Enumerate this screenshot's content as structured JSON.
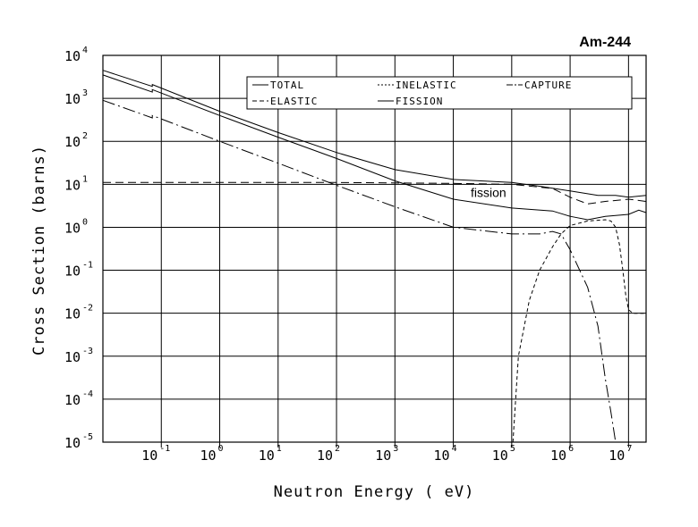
{
  "chart_data": {
    "type": "line",
    "title": "Am-244",
    "xlabel": "Neutron Energy ( eV)",
    "ylabel": "Cross Section (barns)",
    "x_scale": "log",
    "y_scale": "log",
    "xlim": [
      0.01,
      20000000
    ],
    "ylim": [
      1e-05,
      10000
    ],
    "grid": true,
    "legend_position": "top-right",
    "x_ticks": [
      {
        "base": "10",
        "exp": "-1",
        "value": 0.1
      },
      {
        "base": "10",
        "exp": "0",
        "value": 1
      },
      {
        "base": "10",
        "exp": "1",
        "value": 10
      },
      {
        "base": "10",
        "exp": "2",
        "value": 100
      },
      {
        "base": "10",
        "exp": "3",
        "value": 1000
      },
      {
        "base": "10",
        "exp": "4",
        "value": 10000
      },
      {
        "base": "10",
        "exp": "5",
        "value": 100000
      },
      {
        "base": "10",
        "exp": "6",
        "value": 1000000
      },
      {
        "base": "10",
        "exp": "7",
        "value": 10000000
      }
    ],
    "y_ticks": [
      {
        "base": "10",
        "exp": "-5",
        "value": 1e-05
      },
      {
        "base": "10",
        "exp": "-4",
        "value": 0.0001
      },
      {
        "base": "10",
        "exp": "-3",
        "value": 0.001
      },
      {
        "base": "10",
        "exp": "-2",
        "value": 0.01
      },
      {
        "base": "10",
        "exp": "-1",
        "value": 0.1
      },
      {
        "base": "10",
        "exp": "0",
        "value": 1
      },
      {
        "base": "10",
        "exp": "1",
        "value": 10
      },
      {
        "base": "10",
        "exp": "2",
        "value": 100
      },
      {
        "base": "10",
        "exp": "3",
        "value": 1000
      },
      {
        "base": "10",
        "exp": "4",
        "value": 10000
      }
    ],
    "series": [
      {
        "name": "TOTAL",
        "dash": "solid",
        "points": [
          [
            0.01,
            4500
          ],
          [
            0.07,
            1900
          ],
          [
            0.07,
            2100
          ],
          [
            1,
            500
          ],
          [
            10,
            160
          ],
          [
            100,
            55
          ],
          [
            1000,
            22
          ],
          [
            10000,
            13
          ],
          [
            100000,
            11
          ],
          [
            300000,
            9
          ],
          [
            1000000,
            7
          ],
          [
            3000000,
            5.5
          ],
          [
            6000000,
            5.5
          ],
          [
            10000000,
            5
          ],
          [
            20000000,
            5.5
          ]
        ]
      },
      {
        "name": "INELASTIC",
        "dash": "4,3",
        "points": [
          [
            105000,
            1e-05
          ],
          [
            130000,
            0.001
          ],
          [
            200000,
            0.02
          ],
          [
            300000,
            0.1
          ],
          [
            500000,
            0.35
          ],
          [
            700000,
            0.7
          ],
          [
            1000000,
            1.1
          ],
          [
            2000000,
            1.4
          ],
          [
            4000000,
            1.5
          ],
          [
            5000000,
            1.4
          ],
          [
            6000000,
            1
          ],
          [
            7000000,
            0.4
          ],
          [
            8000000,
            0.1
          ],
          [
            9000000,
            0.025
          ],
          [
            10000000,
            0.012
          ],
          [
            12000000,
            0.01
          ],
          [
            20000000,
            0.01
          ]
        ]
      },
      {
        "name": "CAPTURE",
        "dash": "14,4,2,4",
        "points": [
          [
            0.01,
            900
          ],
          [
            0.07,
            350
          ],
          [
            0.07,
            400
          ],
          [
            1,
            100
          ],
          [
            10,
            31
          ],
          [
            100,
            9.5
          ],
          [
            1000,
            3
          ],
          [
            10000,
            1
          ],
          [
            100000,
            0.7
          ],
          [
            300000,
            0.7
          ],
          [
            500000,
            0.8
          ],
          [
            700000,
            0.7
          ],
          [
            1000000,
            0.3
          ],
          [
            2000000,
            0.04
          ],
          [
            3000000,
            0.005
          ],
          [
            4000000,
            0.0003
          ],
          [
            5000000,
            5e-05
          ],
          [
            6000000,
            1e-05
          ]
        ]
      },
      {
        "name": "ELASTIC",
        "dash": "9,5",
        "points": [
          [
            0.01,
            11
          ],
          [
            100,
            11
          ],
          [
            10000,
            10.5
          ],
          [
            100000,
            10
          ],
          [
            500000,
            8
          ],
          [
            1000000,
            5
          ],
          [
            2000000,
            3.5
          ],
          [
            4000000,
            4
          ],
          [
            10000000,
            4.5
          ],
          [
            20000000,
            4
          ]
        ]
      },
      {
        "name": "FISSION",
        "dash": "solid",
        "points": [
          [
            0.01,
            3500
          ],
          [
            0.07,
            1400
          ],
          [
            0.07,
            1600
          ],
          [
            1,
            400
          ],
          [
            10,
            125
          ],
          [
            100,
            40
          ],
          [
            1000,
            12
          ],
          [
            10000,
            4.5
          ],
          [
            100000,
            2.8
          ],
          [
            500000,
            2.4
          ],
          [
            1000000,
            1.8
          ],
          [
            2000000,
            1.5
          ],
          [
            4000000,
            1.8
          ],
          [
            10000000,
            2
          ],
          [
            15000000,
            2.5
          ],
          [
            20000000,
            2.2
          ]
        ]
      }
    ],
    "annotations": [
      {
        "text": "fission",
        "x": 40000,
        "y": 6.5
      }
    ],
    "legend": {
      "rows": [
        [
          "TOTAL",
          "INELASTIC",
          "CAPTURE"
        ],
        [
          "ELASTIC",
          "FISSION"
        ]
      ]
    }
  }
}
